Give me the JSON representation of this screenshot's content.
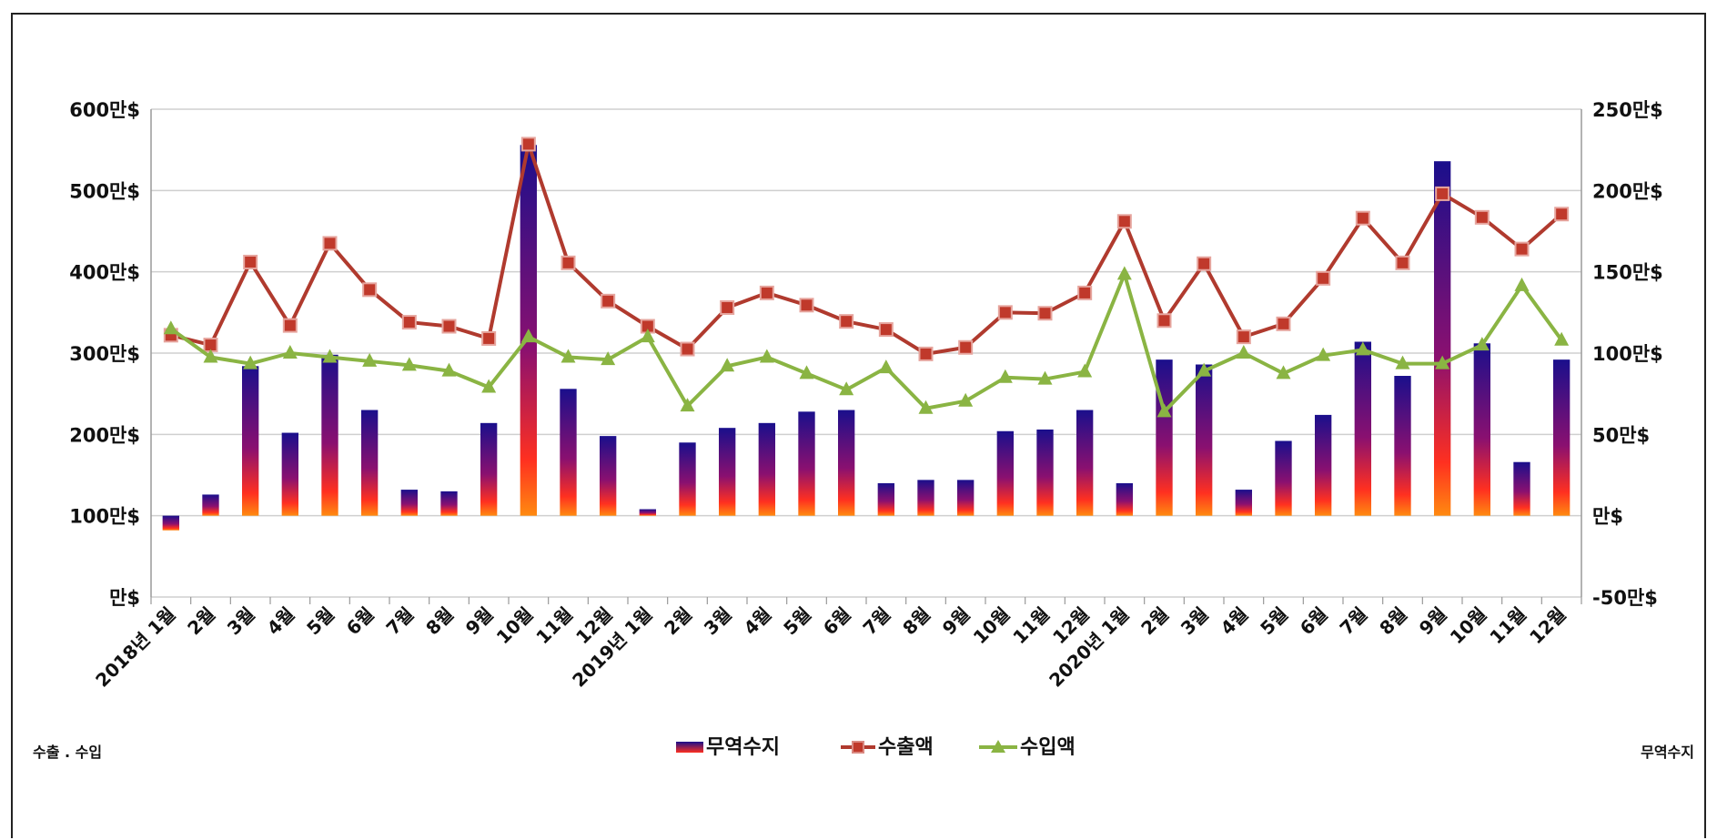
{
  "chart_data": {
    "type": "bar",
    "categories": [
      "2018년 1월",
      "2월",
      "3월",
      "4월",
      "5월",
      "6월",
      "7월",
      "8월",
      "9월",
      "10월",
      "11월",
      "12월",
      "2019년 1월",
      "2월",
      "3월",
      "4월",
      "5월",
      "6월",
      "7월",
      "8월",
      "9월",
      "10월",
      "11월",
      "12월",
      "2020년 1월",
      "2월",
      "3월",
      "4월",
      "5월",
      "6월",
      "7월",
      "8월",
      "9월",
      "10월",
      "11월",
      "12월"
    ],
    "left_axis": {
      "label": "수출 . 수입",
      "ylim": [
        0,
        600
      ],
      "ticks": [
        "만$",
        "100만$",
        "200만$",
        "300만$",
        "400만$",
        "500만$",
        "600만$"
      ]
    },
    "right_axis": {
      "label": "무역수지",
      "ylim": [
        -50,
        250
      ],
      "ticks": [
        "-50만$",
        "만$",
        "50만$",
        "100만$",
        "150만$",
        "200만$",
        "250만$"
      ]
    },
    "series": [
      {
        "name": "무역수지",
        "type": "bar",
        "axis": "right",
        "values": [
          -9,
          13,
          92,
          51,
          99,
          65,
          16,
          15,
          57,
          228,
          78,
          49,
          4,
          45,
          54,
          57,
          64,
          65,
          20,
          22,
          22,
          52,
          53,
          65,
          20,
          96,
          93,
          16,
          46,
          62,
          107,
          86,
          218,
          106,
          33,
          96
        ],
        "colors": {
          "top": "#1a0f8c",
          "middle": "#8a1070",
          "bottom": "#ff3020",
          "base": "#ff8a10"
        }
      },
      {
        "name": "수출액",
        "type": "line",
        "axis": "left",
        "color": "#b03a2e",
        "marker": "square",
        "values": [
          322,
          310,
          412,
          334,
          435,
          378,
          338,
          333,
          318,
          557,
          411,
          364,
          333,
          305,
          356,
          374,
          359,
          339,
          329,
          299,
          307,
          350,
          349,
          374,
          462,
          340,
          410,
          320,
          336,
          392,
          466,
          411,
          496,
          467,
          428,
          471
        ]
      },
      {
        "name": "수입액",
        "type": "line",
        "axis": "left",
        "color": "#8ab443",
        "marker": "triangle",
        "values": [
          330,
          295,
          287,
          300,
          295,
          290,
          285,
          278,
          258,
          320,
          295,
          292,
          320,
          235,
          284,
          295,
          275,
          255,
          282,
          232,
          241,
          270,
          268,
          277,
          397,
          228,
          278,
          300,
          275,
          297,
          304,
          287,
          287,
          310,
          383,
          316
        ]
      }
    ],
    "legend": {
      "position": "bottom"
    },
    "grid": true
  }
}
